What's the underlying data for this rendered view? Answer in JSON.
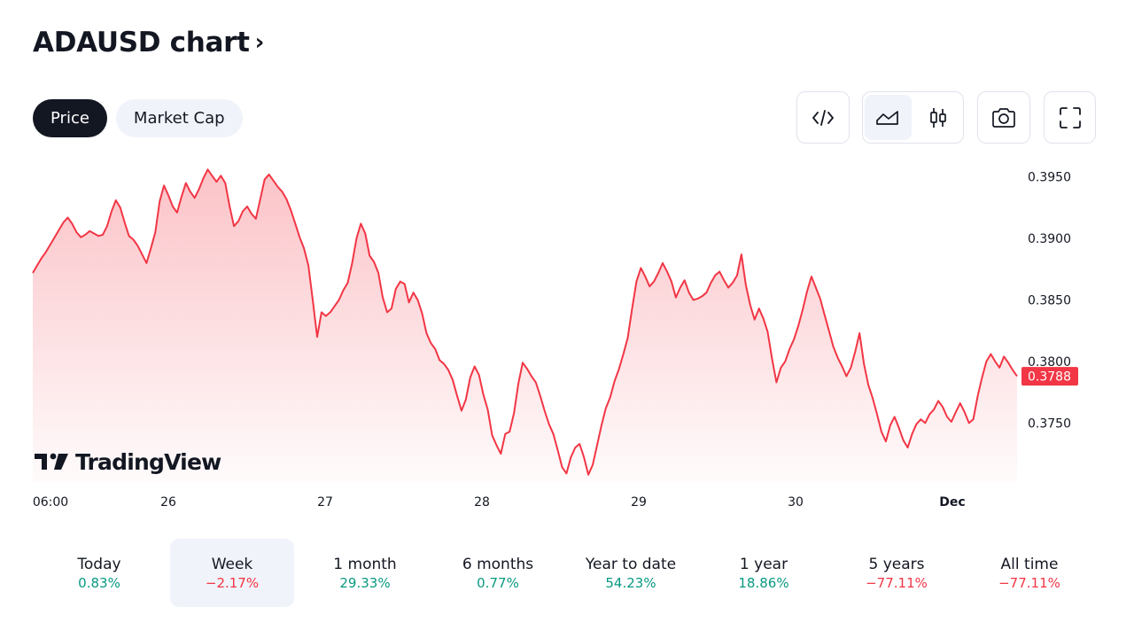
{
  "header": {
    "title": "ADAUSD chart",
    "title_chevron": "›"
  },
  "tabs": [
    {
      "label": "Price",
      "active": true
    },
    {
      "label": "Market Cap",
      "active": false
    }
  ],
  "toolbar": {
    "embed_icon": "code-icon",
    "line_chart_icon": "area-chart-icon",
    "candles_icon": "candlestick-icon",
    "snapshot_icon": "camera-icon",
    "fullscreen_icon": "fullscreen-icon",
    "selected_style": "area"
  },
  "watermark": {
    "text": "TradingView",
    "logo": "tradingview-logo"
  },
  "colors": {
    "line": "#f23645",
    "positive": "#089981",
    "negative": "#f23645",
    "text": "#131722",
    "axis_text": "#131722"
  },
  "chart_data": {
    "type": "area",
    "title": "",
    "xlabel": "",
    "ylabel": "",
    "x_ticks": [
      "06:00",
      "26",
      "27",
      "28",
      "29",
      "30",
      "Dec"
    ],
    "y_ticks": [
      "0.3950",
      "0.3900",
      "0.3850",
      "0.3800",
      "0.3750"
    ],
    "ylim": [
      0.3702,
      0.3962
    ],
    "grid": false,
    "legend": "none",
    "last_price_label": "0.3788",
    "series": [
      {
        "values": [
          0.3872,
          0.3878,
          0.3884,
          0.3889,
          0.3895,
          0.3901,
          0.3907,
          0.3913,
          0.3917,
          0.3912,
          0.3905,
          0.3901,
          0.3903,
          0.3906,
          0.3904,
          0.3902,
          0.3903,
          0.391,
          0.3922,
          0.3931,
          0.3925,
          0.3913,
          0.3902,
          0.3899,
          0.3894,
          0.3887,
          0.388,
          0.3892,
          0.3905,
          0.393,
          0.3943,
          0.3935,
          0.3926,
          0.3921,
          0.3934,
          0.3945,
          0.3938,
          0.3933,
          0.394,
          0.3949,
          0.3956,
          0.3951,
          0.3946,
          0.3951,
          0.3945,
          0.3926,
          0.391,
          0.3914,
          0.3922,
          0.3926,
          0.392,
          0.3916,
          0.3932,
          0.3948,
          0.3952,
          0.3947,
          0.3942,
          0.3938,
          0.3932,
          0.3923,
          0.3912,
          0.3901,
          0.3892,
          0.3878,
          0.385,
          0.382,
          0.384,
          0.3837,
          0.384,
          0.3845,
          0.385,
          0.3858,
          0.3864,
          0.388,
          0.39,
          0.3912,
          0.3904,
          0.3886,
          0.3881,
          0.3872,
          0.3852,
          0.384,
          0.3843,
          0.3859,
          0.3865,
          0.3863,
          0.3848,
          0.3856,
          0.385,
          0.3839,
          0.3823,
          0.3815,
          0.381,
          0.3801,
          0.3798,
          0.3793,
          0.3785,
          0.3772,
          0.376,
          0.3769,
          0.3787,
          0.3796,
          0.3789,
          0.3773,
          0.3761,
          0.374,
          0.3732,
          0.3725,
          0.3741,
          0.3743,
          0.3758,
          0.3782,
          0.3799,
          0.3794,
          0.3788,
          0.3783,
          0.3772,
          0.376,
          0.3749,
          0.3741,
          0.3728,
          0.3714,
          0.3709,
          0.3722,
          0.373,
          0.3733,
          0.3722,
          0.3708,
          0.3716,
          0.3732,
          0.3748,
          0.3762,
          0.3771,
          0.3784,
          0.3794,
          0.3806,
          0.3819,
          0.3843,
          0.3865,
          0.3876,
          0.3869,
          0.3861,
          0.3865,
          0.3872,
          0.388,
          0.3873,
          0.3865,
          0.3852,
          0.386,
          0.3866,
          0.3856,
          0.385,
          0.3851,
          0.3853,
          0.3856,
          0.3864,
          0.387,
          0.3873,
          0.3866,
          0.386,
          0.3864,
          0.387,
          0.3887,
          0.3862,
          0.3846,
          0.3834,
          0.3843,
          0.3835,
          0.3824,
          0.3802,
          0.3783,
          0.3795,
          0.38,
          0.381,
          0.3818,
          0.3829,
          0.3842,
          0.3857,
          0.3869,
          0.386,
          0.3851,
          0.3838,
          0.3825,
          0.3812,
          0.3803,
          0.3796,
          0.3788,
          0.3795,
          0.3808,
          0.3823,
          0.3798,
          0.3781,
          0.377,
          0.3757,
          0.3743,
          0.3735,
          0.3748,
          0.3755,
          0.3746,
          0.3736,
          0.373,
          0.3741,
          0.3749,
          0.3753,
          0.375,
          0.3757,
          0.3761,
          0.3768,
          0.3763,
          0.3755,
          0.3751,
          0.3759,
          0.3766,
          0.3759,
          0.375,
          0.3753,
          0.3772,
          0.3787,
          0.38,
          0.3806,
          0.38,
          0.3795,
          0.3804,
          0.3799,
          0.3793,
          0.3788
        ]
      }
    ]
  },
  "periods": [
    {
      "label": "Today",
      "value": "0.83%",
      "trend": "pos",
      "selected": false
    },
    {
      "label": "Week",
      "value": "−2.17%",
      "trend": "neg",
      "selected": true
    },
    {
      "label": "1 month",
      "value": "29.33%",
      "trend": "pos",
      "selected": false
    },
    {
      "label": "6 months",
      "value": "0.77%",
      "trend": "pos",
      "selected": false
    },
    {
      "label": "Year to date",
      "value": "54.23%",
      "trend": "pos",
      "selected": false
    },
    {
      "label": "1 year",
      "value": "18.86%",
      "trend": "pos",
      "selected": false
    },
    {
      "label": "5 years",
      "value": "−77.11%",
      "trend": "neg",
      "selected": false
    },
    {
      "label": "All time",
      "value": "−77.11%",
      "trend": "neg",
      "selected": false
    }
  ]
}
